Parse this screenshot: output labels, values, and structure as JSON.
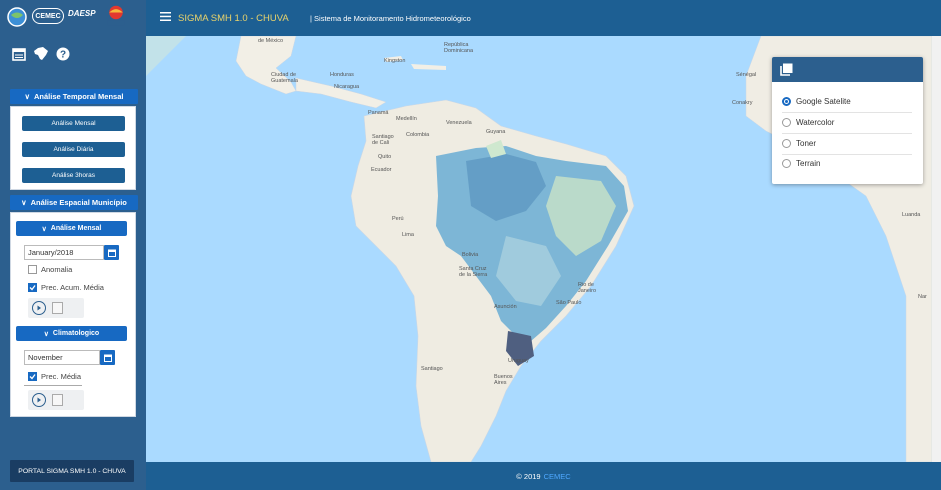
{
  "header": {
    "title": "SIGMA SMH 1.0 - CHUVA",
    "subtitle": "| Sistema de Monitoramento Hidrometeorológico"
  },
  "logos": {
    "cemec": "CEMEC",
    "daesp": "DAESP",
    "terrama": "TerraMA²"
  },
  "sidebar": {
    "temporal": {
      "header": "Análise Temporal Mensal",
      "buttons": [
        "Análise Mensal",
        "Análise Diária",
        "Análise 3horas"
      ]
    },
    "espacial": {
      "header": "Análise Espacial Município",
      "mensal": {
        "header": "Análise Mensal",
        "date_value": "January/2018",
        "checkboxes": [
          {
            "label": "Anomalia",
            "checked": false
          },
          {
            "label": "Prec. Acum. Média",
            "checked": true
          }
        ]
      },
      "clima": {
        "header": "Climatologico",
        "month_value": "November",
        "checkboxes": [
          {
            "label": "Prec. Média",
            "checked": true
          }
        ]
      }
    },
    "portal_button": "PORTAL SIGMA SMH 1.0 - CHUVA"
  },
  "footer": {
    "text": "© 2019",
    "link": "CEMEC"
  },
  "layer_control": {
    "options": [
      {
        "label": "Google Satelite",
        "selected": true
      },
      {
        "label": "Watercolor",
        "selected": false
      },
      {
        "label": "Toner",
        "selected": false
      },
      {
        "label": "Terrain",
        "selected": false
      }
    ]
  },
  "map_labels": {
    "mexico": "de México",
    "guatemala": "Ciudad de Guatemala",
    "honduras": "Honduras",
    "nicaragua": "Nicaragua",
    "republica": "República Dominicana",
    "kingston": "Kingston",
    "panama": "Panamá",
    "medellin": "Medellín",
    "colombia": "Colombia",
    "venezuela": "Venezuela",
    "guyana": "Guyana",
    "santiago_cali": "Santiago de Cali",
    "quito": "Quito",
    "ecuador": "Ecuador",
    "peru": "Perú",
    "lima": "Lima",
    "bolivia": "Bolivia",
    "santa_cruz": "Santa Cruz de la Sierra",
    "rio": "Rio de Janeiro",
    "sao_paulo": "São Paulo",
    "asuncion": "Asunción",
    "uruguay": "Uruguay",
    "santiago": "Santiago",
    "buenos_aires": "Buenos Aires",
    "senegal": "Sénégal",
    "conakry": "Conakry",
    "luanda": "Luanda",
    "angola": "Nar"
  }
}
